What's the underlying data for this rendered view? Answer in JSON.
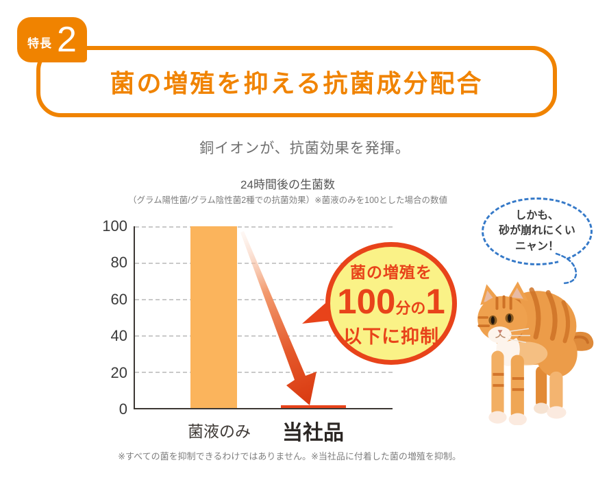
{
  "badge": {
    "label": "特長",
    "number": "2"
  },
  "banner": {
    "title": "菌の増殖を抑える抗菌成分配合"
  },
  "lead": "銅イオンが、抗菌効果を発揮。",
  "chart_data": {
    "type": "bar",
    "title": "24時間後の生菌数",
    "subtitle": "（グラム陽性菌/グラム陰性菌2種での抗菌効果）※菌液のみを100とした場合の数値",
    "categories": [
      "菌液のみ",
      "当社品"
    ],
    "values": [
      100,
      1
    ],
    "ylim": [
      0,
      100
    ],
    "yticks": [
      100,
      80,
      60,
      40,
      20,
      0
    ],
    "bar_colors": [
      "#FBB45C",
      "#E8431A"
    ],
    "grid": "horizontal-dashed",
    "legend": "none",
    "annotation": "菌の増殖を100分の1以下に抑制"
  },
  "burst": {
    "line1": "菌の増殖を",
    "big1": "100",
    "small": "分の",
    "big2": "1",
    "line3": "以下に抑制",
    "fill_color": "#FAF287",
    "stroke_color": "#E8431A"
  },
  "cat_bubble": {
    "line1": "しかも、",
    "line2": "砂が崩れにくい",
    "line3": "ニャン！"
  },
  "footnote": "※すべての菌を抑制できるわけではありません。※当社品に付着した菌の増殖を抑制。",
  "icons": {
    "arrow": "decrease-arrow",
    "cat": "orange-tabby-cat",
    "burst": "emphasis-speech-balloon",
    "bubble": "dashed-speech-bubble"
  },
  "colors": {
    "accent_orange": "#F08300",
    "bar_orange": "#FBB45C",
    "alert_red": "#E8431A",
    "burst_yellow": "#FAF287",
    "bubble_blue": "#3579C8"
  }
}
